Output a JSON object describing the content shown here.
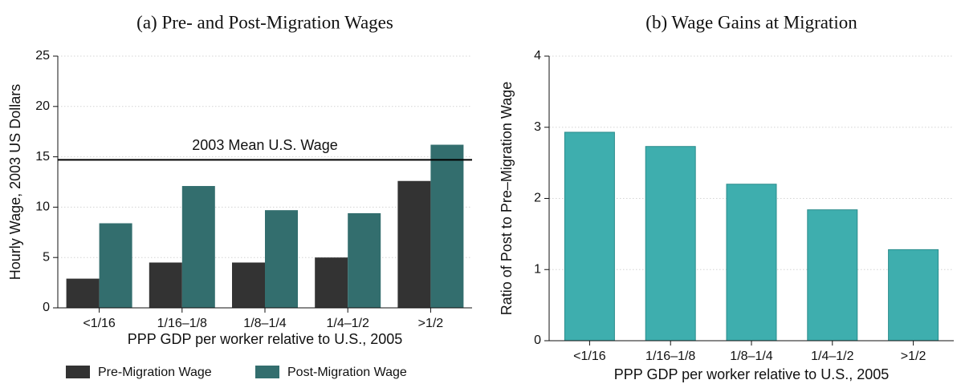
{
  "chart_data": [
    {
      "type": "bar",
      "title": "(a) Pre- and Post-Migration Wages",
      "xlabel": "PPP GDP per worker relative to U.S., 2005",
      "ylabel": "Hourly Wage, 2003 US Dollars",
      "categories": [
        "<1/16",
        "1/16–1/8",
        "1/8–1/4",
        "1/4–1/2",
        ">1/2"
      ],
      "series": [
        {
          "name": "Pre-Migration Wage",
          "color": "#333333",
          "values": [
            2.9,
            4.5,
            4.5,
            5.0,
            12.6
          ]
        },
        {
          "name": "Post-Migration Wage",
          "color": "#336e6e",
          "values": [
            8.4,
            12.1,
            9.7,
            9.4,
            16.2
          ]
        }
      ],
      "hline": {
        "value": 14.7,
        "label": "2003 Mean U.S. Wage"
      },
      "ylim": [
        0,
        25
      ],
      "yticks": [
        0,
        5,
        10,
        15,
        20,
        25
      ],
      "grid": true,
      "legend": "bottom"
    },
    {
      "type": "bar",
      "title": "(b) Wage Gains at Migration",
      "xlabel": "PPP GDP per worker relative to U.S., 2005",
      "ylabel": "Ratio of Post to Pre–Migration Wage",
      "categories": [
        "<1/16",
        "1/16–1/8",
        "1/8–1/4",
        "1/4–1/2",
        ">1/2"
      ],
      "series": [
        {
          "color": "#3eaeae",
          "values": [
            2.93,
            2.73,
            2.2,
            1.84,
            1.28
          ]
        }
      ],
      "ylim": [
        0,
        4
      ],
      "yticks": [
        0,
        1,
        2,
        3,
        4
      ],
      "grid": true
    }
  ]
}
